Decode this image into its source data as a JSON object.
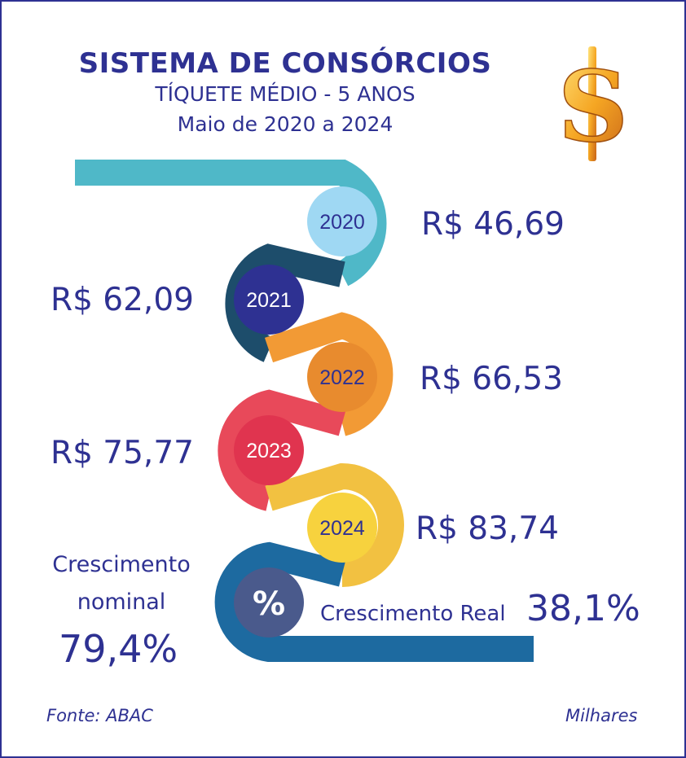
{
  "header": {
    "title": "SISTEMA DE CONSÓRCIOS",
    "subtitle": "TÍQUETE MÉDIO - 5 ANOS",
    "period": "Maio de 2020 a 2024"
  },
  "icon": "dollar-sign-icon",
  "chart_data": {
    "type": "timeline",
    "unit": "Milhares",
    "points": [
      {
        "year": "2020",
        "label": "R$ 46,69",
        "value": 46.69,
        "color": "#9fd8f3",
        "track_color": "#4fb8c8"
      },
      {
        "year": "2021",
        "label": "R$ 62,09",
        "value": 62.09,
        "color": "#2e3192",
        "track_color": "#1d4d6b"
      },
      {
        "year": "2022",
        "label": "R$ 66,53",
        "value": 66.53,
        "color": "#e88b2e",
        "track_color": "#f29a35"
      },
      {
        "year": "2023",
        "label": "R$ 75,77",
        "value": 75.77,
        "color": "#e0344f",
        "track_color": "#e8495a"
      },
      {
        "year": "2024",
        "label": "R$ 83,74",
        "value": 83.74,
        "color": "#f7d23e",
        "track_color": "#f2c141"
      }
    ]
  },
  "growth": {
    "nominal_line1": "Crescimento",
    "nominal_line2": "nominal",
    "nominal_value": "79,4%",
    "real_label": "Crescimento Real",
    "real_value": "38,1%",
    "symbol": "%",
    "symbol_color": "#4a5a8c",
    "track_color": "#1d6aa0"
  },
  "footer": {
    "source": "Fonte: ABAC",
    "unit": "Milhares"
  }
}
